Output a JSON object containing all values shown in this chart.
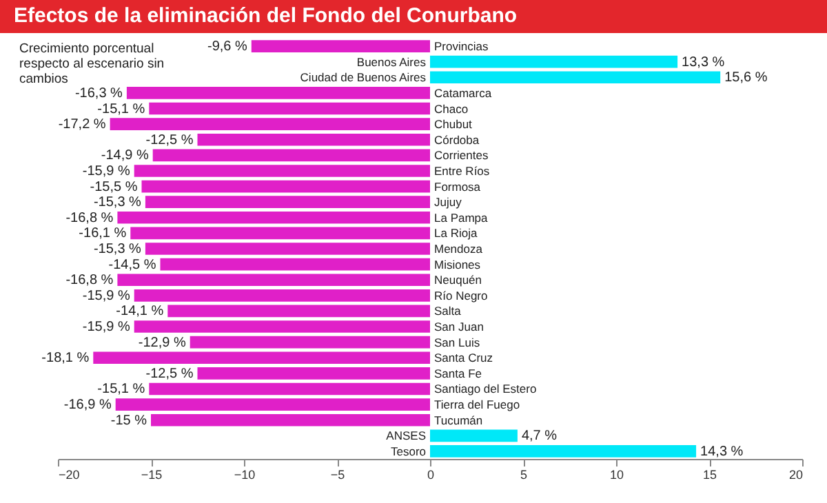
{
  "chart_data": {
    "type": "bar",
    "orientation": "horizontal",
    "title": "Efectos de la eliminación del Fondo del Conurbano",
    "annotations": [
      "Crecimiento porcentual respecto al escenario sin cambios"
    ],
    "categories": [
      "Provincias",
      "Buenos Aires",
      "Ciudad de Buenos Aires",
      "Catamarca",
      "Chaco",
      "Chubut",
      "Córdoba",
      "Corrientes",
      "Entre Ríos",
      "Formosa",
      "Jujuy",
      "La Pampa",
      "La Rioja",
      "Mendoza",
      "Misiones",
      "Neuquén",
      "Río Negro",
      "Salta",
      "San Juan",
      "San Luis",
      "Santa Cruz",
      "Santa Fe",
      "Santiago del Estero",
      "Tierra del Fuego",
      "Tucumán",
      "ANSES",
      "Tesoro"
    ],
    "values": [
      -9.6,
      13.3,
      15.6,
      -16.3,
      -15.1,
      -17.2,
      -12.5,
      -14.9,
      -15.9,
      -15.5,
      -15.3,
      -16.8,
      -16.1,
      -15.3,
      -14.5,
      -16.8,
      -15.9,
      -14.1,
      -15.9,
      -12.9,
      -18.1,
      -12.5,
      -15.1,
      -16.9,
      -15,
      4.7,
      14.3
    ],
    "value_labels": [
      "-9,6 %",
      "13,3 %",
      "15,6 %",
      "-16,3 %",
      "-15,1 %",
      "-17,2 %",
      "-12,5 %",
      "-14,9 %",
      "-15,9 %",
      "-15,5 %",
      "-15,3 %",
      "-16,8 %",
      "-16,1 %",
      "-15,3 %",
      "-14,5 %",
      "-16,8 %",
      "-15,9 %",
      "-14,1 %",
      "-15,9 %",
      "-12,9 %",
      "-18,1 %",
      "-12,5 %",
      "-15,1 %",
      "-16,9 %",
      "-15 %",
      "4,7 %",
      "14,3 %"
    ],
    "colors": [
      "#e020c8",
      "#00e8f8",
      "#00e8f8",
      "#e020c8",
      "#e020c8",
      "#e020c8",
      "#e020c8",
      "#e020c8",
      "#e020c8",
      "#e020c8",
      "#e020c8",
      "#e020c8",
      "#e020c8",
      "#e020c8",
      "#e020c8",
      "#e020c8",
      "#e020c8",
      "#e020c8",
      "#e020c8",
      "#e020c8",
      "#e020c8",
      "#e020c8",
      "#e020c8",
      "#e020c8",
      "#e020c8",
      "#00e8f8",
      "#00e8f8"
    ],
    "xlim": [
      -20,
      20
    ],
    "xticks": [
      -20,
      -15,
      -10,
      -5,
      0,
      5,
      10,
      15,
      20
    ],
    "grid": false
  }
}
